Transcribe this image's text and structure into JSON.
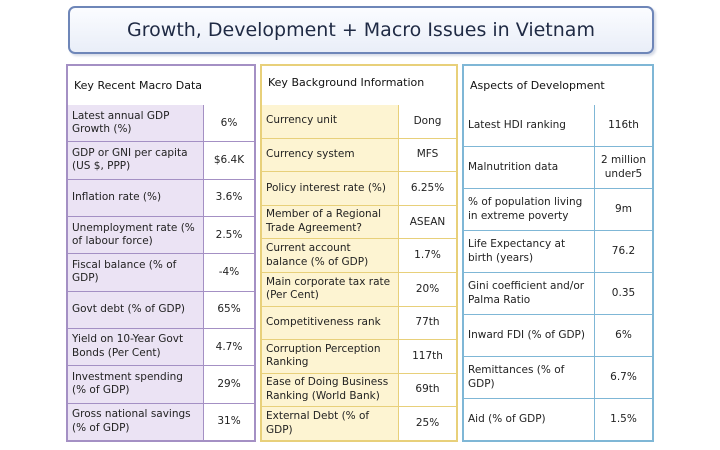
{
  "title": "Growth, Development + Macro Issues in Vietnam",
  "macro": {
    "heading": "Key Recent Macro Data",
    "rows": [
      {
        "label": "Latest annual GDP Growth (%)",
        "value": "6%"
      },
      {
        "label": "GDP or GNI per capita (US $, PPP)",
        "value": "$6.4K"
      },
      {
        "label": "Inflation rate (%)",
        "value": "3.6%"
      },
      {
        "label": "Unemployment rate (% of labour force)",
        "value": "2.5%"
      },
      {
        "label": "Fiscal balance (% of GDP)",
        "value": "-4%"
      },
      {
        "label": "Govt debt (% of GDP)",
        "value": "65%"
      },
      {
        "label": "Yield on 10-Year Govt Bonds (Per Cent)",
        "value": "4.7%"
      },
      {
        "label": "Investment spending (% of GDP)",
        "value": "29%"
      },
      {
        "label": "Gross national savings (% of GDP)",
        "value": "31%"
      }
    ]
  },
  "background": {
    "heading": "Key Background Information",
    "rows": [
      {
        "label": "Currency unit",
        "value": "Dong"
      },
      {
        "label": "Currency system",
        "value": "MFS"
      },
      {
        "label": "Policy interest rate (%)",
        "value": "6.25%"
      },
      {
        "label": "Member of a Regional Trade Agreement?",
        "value": "ASEAN"
      },
      {
        "label": "Current account balance (% of GDP)",
        "value": "1.7%"
      },
      {
        "label": "Main corporate tax rate (Per Cent)",
        "value": "20%"
      },
      {
        "label": "Competitiveness rank",
        "value": "77th"
      },
      {
        "label": "Corruption Perception Ranking",
        "value": "117th"
      },
      {
        "label": "Ease of Doing Business Ranking (World Bank)",
        "value": "69th"
      },
      {
        "label": "External Debt (% of GDP)",
        "value": "25%"
      }
    ]
  },
  "development": {
    "heading": "Aspects of Development",
    "rows": [
      {
        "label": "Latest HDI ranking",
        "value": "116th"
      },
      {
        "label": "Malnutrition data",
        "value": "2 million under5"
      },
      {
        "label": "% of population living in extreme poverty",
        "value": "9m"
      },
      {
        "label": "Life Expectancy at birth (years)",
        "value": "76.2"
      },
      {
        "label": "Gini coefficient and/or Palma Ratio",
        "value": "0.35"
      },
      {
        "label": "Inward FDI (% of GDP)",
        "value": "6%"
      },
      {
        "label": "Remittances (% of GDP)",
        "value": "6.7%"
      },
      {
        "label": "Aid (% of GDP)",
        "value": "1.5%"
      }
    ]
  }
}
